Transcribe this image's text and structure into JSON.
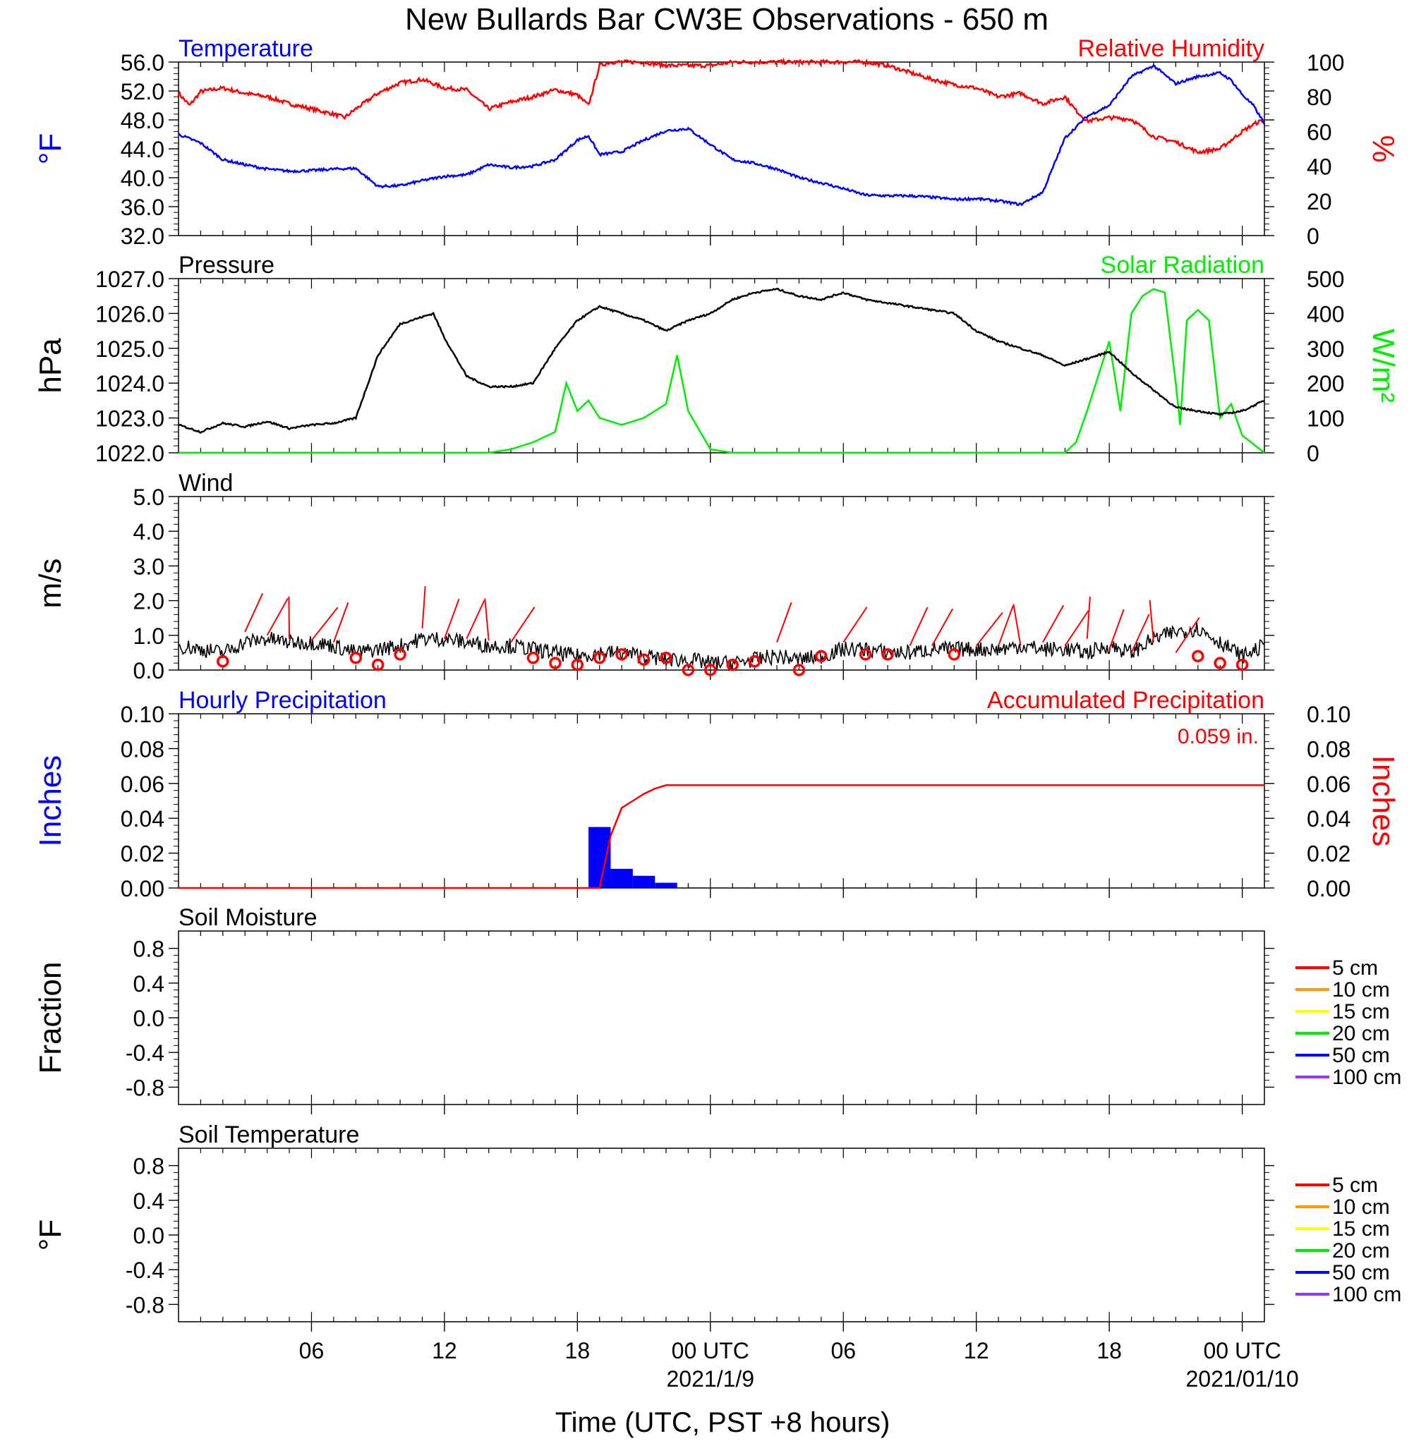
{
  "title": "New Bullards Bar CW3E Observations - 650 m",
  "xlabel": "Time (UTC, PST +8 hours)",
  "x_ticks": [
    {
      "hour": 6,
      "label": "06"
    },
    {
      "hour": 12,
      "label": "12"
    },
    {
      "hour": 18,
      "label": "18"
    },
    {
      "hour": 24,
      "label": "00 UTC"
    },
    {
      "hour": 30,
      "label": "06"
    },
    {
      "hour": 36,
      "label": "12"
    },
    {
      "hour": 42,
      "label": "18"
    },
    {
      "hour": 48,
      "label": "00 UTC"
    }
  ],
  "date_labels": [
    {
      "hour": 24,
      "label": "2021/1/9"
    },
    {
      "hour": 48,
      "label": "2021/01/10"
    }
  ],
  "colors": {
    "temperature": "#0000ff",
    "humidity": "#ff0000",
    "pressure": "#000000",
    "solar": "#00ee00",
    "wind": "#000000",
    "barb": "#ff0000",
    "hourly_precip": "#0000ff",
    "accum_precip": "#ff0000"
  },
  "chart_data": [
    {
      "id": "temp_rh",
      "type": "line",
      "left_title": "Temperature",
      "right_title": "Relative Humidity",
      "left_ylabel": "°F",
      "right_ylabel": "%",
      "left_ylim": [
        32,
        56
      ],
      "right_ylim": [
        0,
        100
      ],
      "left_ticks": [
        "32.0",
        "36.0",
        "40.0",
        "44.0",
        "48.0",
        "52.0",
        "56.0"
      ],
      "right_ticks": [
        "0",
        "20",
        "40",
        "60",
        "80",
        "100"
      ],
      "series": [
        {
          "name": "Temperature",
          "axis": "left",
          "x": [
            0,
            1,
            2,
            3,
            4,
            5,
            6,
            7,
            8,
            9,
            10,
            11,
            12,
            13,
            14,
            15,
            16,
            17,
            18,
            18.5,
            19,
            20,
            21,
            22,
            23,
            24,
            25,
            26,
            27,
            28,
            29,
            30,
            31,
            32,
            33,
            34,
            35,
            36,
            37,
            38,
            39,
            40,
            40.5,
            41,
            42,
            43,
            44,
            45,
            46,
            47,
            47.5,
            48,
            48.5,
            49
          ],
          "y": [
            46,
            44.8,
            42.5,
            41.8,
            41.2,
            40.9,
            41,
            41.2,
            41.3,
            38.8,
            38.9,
            39.6,
            40.2,
            40.4,
            41.8,
            41.4,
            41.6,
            42.5,
            45.2,
            45.8,
            43.2,
            43.6,
            45.2,
            46.5,
            46.8,
            44.6,
            42.5,
            42,
            41.2,
            40,
            39.3,
            38.5,
            37.6,
            37.5,
            37.5,
            37.3,
            37,
            37.1,
            36.8,
            36.3,
            38,
            45.5,
            47,
            48.5,
            50,
            54,
            55.5,
            53,
            54,
            54.5,
            53.5,
            51.5,
            50,
            47.5
          ]
        },
        {
          "name": "Relative Humidity",
          "axis": "right",
          "x": [
            0,
            0.5,
            1,
            2,
            3,
            4,
            5,
            6,
            7,
            7.5,
            8,
            9,
            10,
            11,
            12,
            13,
            14,
            15,
            16,
            17,
            18,
            18.5,
            19,
            19.5,
            20,
            21,
            22,
            23,
            24,
            25,
            26,
            27,
            28,
            29,
            30,
            31,
            32,
            33,
            34,
            35,
            36,
            37,
            38,
            39,
            40,
            40.5,
            41,
            42,
            43,
            44,
            45,
            46,
            47,
            47.5,
            48,
            48.5,
            49
          ],
          "y": [
            82,
            75,
            83,
            85,
            82,
            80,
            76,
            73,
            70,
            68,
            73,
            82,
            88,
            90,
            85,
            84,
            73,
            77,
            80,
            84,
            81,
            75,
            98,
            100,
            100,
            100,
            98,
            98,
            98,
            100,
            100,
            100,
            100,
            100,
            100,
            100,
            98,
            94,
            90,
            87,
            85,
            80,
            82,
            76,
            80,
            72,
            66,
            68,
            67,
            57,
            54,
            48,
            50,
            55,
            60,
            64,
            67
          ]
        }
      ]
    },
    {
      "id": "pressure_solar",
      "type": "line",
      "left_title": "Pressure",
      "right_title": "Solar Radiation",
      "left_ylabel": "hPa",
      "right_ylabel": "W/m²",
      "left_ylim": [
        1022,
        1027
      ],
      "right_ylim": [
        0,
        500
      ],
      "left_ticks": [
        "1022.0",
        "1023.0",
        "1024.0",
        "1025.0",
        "1026.0",
        "1027.0"
      ],
      "right_ticks": [
        "0",
        "100",
        "200",
        "300",
        "400",
        "500"
      ],
      "series": [
        {
          "name": "Pressure",
          "axis": "left",
          "x": [
            0,
            1,
            2,
            3,
            4,
            5,
            6,
            7,
            8,
            9,
            10,
            11,
            11.5,
            12,
            13,
            14,
            15,
            16,
            17,
            18,
            19,
            20,
            21,
            22,
            23,
            24,
            25,
            26,
            27,
            28,
            29,
            30,
            31,
            32,
            33,
            34,
            35,
            36,
            37,
            38,
            39,
            40,
            41,
            42,
            43,
            44,
            45,
            46,
            47,
            48,
            49
          ],
          "y": [
            1022.8,
            1022.6,
            1022.85,
            1022.75,
            1022.9,
            1022.7,
            1022.8,
            1022.85,
            1023.0,
            1024.8,
            1025.7,
            1025.9,
            1026.0,
            1025.3,
            1024.2,
            1023.9,
            1023.9,
            1024.0,
            1025.0,
            1025.8,
            1026.2,
            1026.0,
            1025.8,
            1025.5,
            1025.8,
            1026.0,
            1026.4,
            1026.6,
            1026.7,
            1026.5,
            1026.4,
            1026.6,
            1026.4,
            1026.3,
            1026.2,
            1026.1,
            1026.0,
            1025.5,
            1025.2,
            1025.0,
            1024.8,
            1024.5,
            1024.7,
            1024.9,
            1024.3,
            1023.8,
            1023.3,
            1023.2,
            1023.1,
            1023.2,
            1023.5
          ]
        },
        {
          "name": "Solar Radiation",
          "axis": "right",
          "x": [
            0,
            14,
            15,
            16,
            17,
            17.5,
            18,
            18.5,
            19,
            20,
            21,
            22,
            22.5,
            23,
            24,
            25,
            40,
            40.5,
            41,
            42,
            42.5,
            43,
            43.5,
            44,
            44.5,
            45,
            45.2,
            45.5,
            46,
            46.5,
            47,
            47.5,
            48,
            49
          ],
          "y": [
            0,
            0,
            10,
            30,
            60,
            200,
            120,
            150,
            100,
            80,
            100,
            140,
            280,
            120,
            10,
            0,
            0,
            30,
            120,
            320,
            120,
            400,
            450,
            470,
            460,
            200,
            80,
            380,
            410,
            380,
            100,
            140,
            50,
            0
          ]
        }
      ]
    },
    {
      "id": "wind",
      "type": "line",
      "left_title": "Wind",
      "left_ylabel": "m/s",
      "left_ylim": [
        0,
        5
      ],
      "left_ticks": [
        "0.0",
        "1.0",
        "2.0",
        "3.0",
        "4.0",
        "5.0"
      ],
      "series": [
        {
          "name": "Wind",
          "x": [
            0,
            1,
            2,
            3,
            4,
            5,
            6,
            7,
            8,
            9,
            10,
            11,
            12,
            13,
            14,
            15,
            16,
            17,
            18,
            19,
            20,
            21,
            22,
            23,
            24,
            25,
            26,
            27,
            28,
            29,
            30,
            31,
            32,
            33,
            34,
            35,
            36,
            37,
            38,
            39,
            40,
            41,
            42,
            43,
            44,
            45,
            46,
            47,
            48,
            49
          ],
          "y": [
            0.7,
            0.6,
            0.5,
            0.8,
            0.9,
            0.8,
            0.8,
            0.7,
            0.5,
            0.6,
            0.7,
            0.9,
            0.9,
            0.8,
            0.7,
            0.7,
            0.6,
            0.5,
            0.4,
            0.5,
            0.5,
            0.4,
            0.3,
            0.3,
            0.2,
            0.2,
            0.3,
            0.4,
            0.3,
            0.4,
            0.6,
            0.6,
            0.5,
            0.5,
            0.6,
            0.6,
            0.6,
            0.6,
            0.7,
            0.6,
            0.6,
            0.5,
            0.7,
            0.5,
            0.9,
            1.1,
            1.2,
            0.8,
            0.4,
            0.7
          ]
        },
        {
          "name": "wind_barb_speed",
          "x": [
            2,
            3,
            4,
            5,
            6,
            7,
            8,
            9,
            10,
            11,
            12,
            13,
            14,
            15,
            16,
            17,
            18,
            19,
            20,
            21,
            22,
            23,
            24,
            25,
            26,
            27,
            28,
            29,
            30,
            31,
            32,
            33,
            34,
            35,
            36,
            37,
            38,
            39,
            40,
            41,
            42,
            43,
            44,
            45,
            46,
            47,
            48
          ],
          "y": [
            0.25,
            1.1,
            1.0,
            0.9,
            0.85,
            0.8,
            0.35,
            0.15,
            0.45,
            1.2,
            0.9,
            0.9,
            0.85,
            0.8,
            0.35,
            0.2,
            0.15,
            0.35,
            0.45,
            0.3,
            0.35,
            0.0,
            0.0,
            0.15,
            0.25,
            0.8,
            0.0,
            0.4,
            0.8,
            0.45,
            0.45,
            0.7,
            0.7,
            0.45,
            0.7,
            0.7,
            0.7,
            0.8,
            0.7,
            0.9,
            0.6,
            0.5,
            0.8,
            0.5,
            0.4,
            0.2,
            0.15
          ]
        }
      ]
    },
    {
      "id": "precip",
      "type": "bar",
      "left_title": "Hourly Precipitation",
      "right_title": "Accumulated Precipitation",
      "annotation": "0.059 in.",
      "left_ylabel": "Inches",
      "right_ylabel": "Inches",
      "left_ylim": [
        0,
        0.1
      ],
      "right_ylim": [
        0,
        0.1
      ],
      "left_ticks": [
        "0.00",
        "0.02",
        "0.04",
        "0.06",
        "0.08",
        "0.10"
      ],
      "right_ticks": [
        "0.00",
        "0.02",
        "0.04",
        "0.06",
        "0.08",
        "0.10"
      ],
      "series": [
        {
          "name": "Hourly Precipitation",
          "axis": "left",
          "x": [
            19,
            20,
            21,
            22
          ],
          "values": [
            0.035,
            0.011,
            0.007,
            0.003
          ]
        },
        {
          "name": "Accumulated Precipitation",
          "axis": "right",
          "x": [
            0,
            18,
            19,
            19.5,
            20,
            20.5,
            21,
            21.5,
            22,
            48,
            49
          ],
          "y": [
            0,
            0,
            0.0,
            0.03,
            0.046,
            0.05,
            0.054,
            0.057,
            0.059,
            0.059,
            0.059
          ]
        }
      ]
    },
    {
      "id": "soil_moisture",
      "type": "line",
      "left_title": "Soil Moisture",
      "left_ylabel": "Fraction",
      "left_ylim": [
        -1,
        1
      ],
      "left_ticks": [
        "-0.8",
        "-0.4",
        "0.0",
        "0.4",
        "0.8"
      ],
      "legend": [
        {
          "label": "5 cm",
          "color": "#ff0000"
        },
        {
          "label": "10 cm",
          "color": "#ff9900"
        },
        {
          "label": "15 cm",
          "color": "#ffff00"
        },
        {
          "label": "20 cm",
          "color": "#00ee00"
        },
        {
          "label": "50 cm",
          "color": "#0000ff"
        },
        {
          "label": "100 cm",
          "color": "#9933ff"
        }
      ]
    },
    {
      "id": "soil_temperature",
      "type": "line",
      "left_title": "Soil Temperature",
      "left_ylabel": "°F",
      "left_ylim": [
        -1,
        1
      ],
      "left_ticks": [
        "-0.8",
        "-0.4",
        "0.0",
        "0.4",
        "0.8"
      ],
      "legend": [
        {
          "label": "5 cm",
          "color": "#ff0000"
        },
        {
          "label": "10 cm",
          "color": "#ff9900"
        },
        {
          "label": "15 cm",
          "color": "#ffff00"
        },
        {
          "label": "20 cm",
          "color": "#00ee00"
        },
        {
          "label": "50 cm",
          "color": "#0000ff"
        },
        {
          "label": "100 cm",
          "color": "#9933ff"
        }
      ]
    }
  ]
}
